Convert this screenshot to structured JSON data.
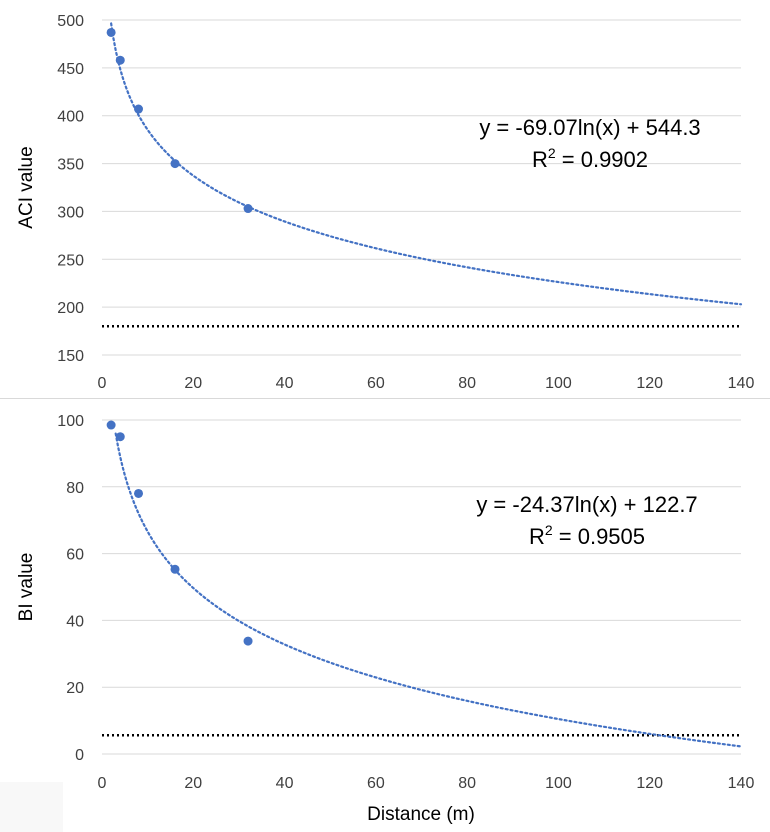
{
  "chart_data": [
    {
      "type": "scatter",
      "title": "",
      "xlabel": "",
      "ylabel": "ACI value",
      "xlim": [
        0,
        140
      ],
      "ylim": [
        150,
        500
      ],
      "xticks": [
        "0",
        "20",
        "40",
        "60",
        "80",
        "100",
        "120",
        "140"
      ],
      "yticks": [
        "150",
        "200",
        "250",
        "300",
        "350",
        "400",
        "450",
        "500"
      ],
      "grid": "horizontal",
      "series": [
        {
          "x": [
            2,
            4,
            8,
            16,
            32
          ],
          "y": [
            487,
            458,
            407,
            350,
            303
          ]
        }
      ],
      "trendline": {
        "form": "logarithmic",
        "a": -69.07,
        "b": 544.3,
        "style": "dotted"
      },
      "threshold": 180,
      "annotation": {
        "equation": "y = -69.07ln(x) + 544.3",
        "r2_prefix": "R",
        "r2_sup": "2",
        "r2_value": " = 0.9902"
      },
      "colors": {
        "marker": "#4472c4",
        "trend": "#4472c4",
        "threshold": "#000000",
        "grid": "#d9d9d9"
      }
    },
    {
      "type": "scatter",
      "title": "",
      "xlabel": "Distance (m)",
      "ylabel": "BI value",
      "xlim": [
        0,
        140
      ],
      "ylim": [
        0,
        100
      ],
      "xticks": [
        "0",
        "20",
        "40",
        "60",
        "80",
        "100",
        "120",
        "140"
      ],
      "yticks": [
        "0",
        "20",
        "40",
        "60",
        "80",
        "100"
      ],
      "grid": "horizontal",
      "series": [
        {
          "x": [
            2,
            4,
            8,
            16,
            32
          ],
          "y": [
            98.5,
            95,
            78,
            55.3,
            33.8
          ]
        }
      ],
      "trendline": {
        "form": "logarithmic",
        "a": -24.37,
        "b": 122.7,
        "style": "dotted"
      },
      "threshold": 5.6,
      "annotation": {
        "equation": "y = -24.37ln(x) + 122.7",
        "r2_prefix": "R",
        "r2_sup": "2",
        "r2_value": " = 0.9505"
      },
      "colors": {
        "marker": "#4472c4",
        "trend": "#4472c4",
        "threshold": "#000000",
        "grid": "#d9d9d9"
      }
    }
  ]
}
